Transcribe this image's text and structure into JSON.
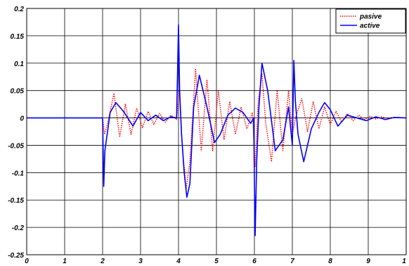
{
  "chart_data": {
    "type": "line",
    "title": "",
    "xlabel": "",
    "ylabel": "",
    "xlim": [
      0,
      10
    ],
    "ylim": [
      -0.25,
      0.2
    ],
    "grid": true,
    "legend_position": "top-right",
    "x_ticks": [
      "0",
      "1",
      "2",
      "3",
      "4",
      "5",
      "6",
      "7",
      "8",
      "9",
      "1"
    ],
    "y_ticks": [
      "0.2",
      "0.15",
      "0.1",
      "0.05",
      "0",
      "-0.05",
      "-0.1",
      "-0.15",
      "-0.2",
      "-0.25"
    ],
    "series": [
      {
        "name": "pasive",
        "color": "#ff0000",
        "style": "dotted",
        "x": [
          0,
          2.0,
          2.05,
          2.15,
          2.3,
          2.45,
          2.6,
          2.75,
          2.9,
          3.05,
          3.2,
          3.35,
          3.5,
          3.65,
          3.8,
          3.95,
          4.02,
          4.1,
          4.2,
          4.3,
          4.45,
          4.6,
          4.75,
          4.9,
          5.05,
          5.2,
          5.35,
          5.5,
          5.65,
          5.8,
          5.95,
          6.02,
          6.1,
          6.2,
          6.3,
          6.45,
          6.6,
          6.75,
          6.9,
          7.0,
          7.1,
          7.25,
          7.4,
          7.55,
          7.7,
          7.85,
          8.0,
          8.15,
          8.3,
          8.45,
          8.6,
          8.75,
          8.9,
          9.05,
          9.2,
          9.35,
          9.5,
          9.65,
          9.8,
          10
        ],
        "y": [
          0,
          0,
          -0.03,
          -0.005,
          0.045,
          -0.035,
          0.025,
          -0.03,
          0.018,
          -0.018,
          0.012,
          -0.012,
          0.008,
          -0.008,
          0.005,
          -0.003,
          0.05,
          -0.05,
          -0.13,
          -0.08,
          0.09,
          -0.06,
          0.07,
          -0.06,
          0.05,
          -0.04,
          0.03,
          -0.03,
          0.02,
          -0.02,
          0.01,
          -0.09,
          0.03,
          0.08,
          -0.01,
          -0.08,
          0.05,
          -0.06,
          0.05,
          -0.03,
          0.005,
          0.035,
          -0.025,
          0.03,
          -0.02,
          0.02,
          -0.012,
          0.012,
          -0.008,
          0.008,
          -0.005,
          0.005,
          -0.003,
          0.003,
          -0.002,
          0.002,
          -0.001,
          0.001,
          0,
          0
        ]
      },
      {
        "name": "active",
        "color": "#0000ff",
        "style": "solid",
        "x": [
          0,
          2.0,
          2.03,
          2.06,
          2.1,
          2.2,
          2.35,
          2.55,
          2.8,
          3.0,
          3.2,
          3.4,
          3.6,
          3.8,
          3.95,
          4.0,
          4.03,
          4.08,
          4.15,
          4.22,
          4.3,
          4.4,
          4.55,
          4.75,
          4.95,
          5.1,
          5.3,
          5.5,
          5.7,
          5.9,
          5.98,
          6.02,
          6.06,
          6.12,
          6.2,
          6.35,
          6.55,
          6.75,
          6.9,
          7.0,
          7.04,
          7.08,
          7.15,
          7.3,
          7.5,
          7.7,
          7.85,
          8.0,
          8.2,
          8.45,
          8.7,
          8.95,
          9.2,
          9.45,
          9.7,
          10
        ],
        "y": [
          0,
          0,
          -0.125,
          -0.06,
          -0.04,
          0.01,
          0.028,
          0.012,
          -0.015,
          0.01,
          -0.005,
          0.005,
          -0.005,
          0.002,
          0,
          0.17,
          0.05,
          -0.03,
          -0.1,
          -0.145,
          -0.12,
          0.02,
          0.078,
          0.02,
          -0.045,
          -0.03,
          0.005,
          0.018,
          0.01,
          -0.01,
          0,
          -0.215,
          -0.08,
          0.02,
          0.1,
          0.05,
          -0.06,
          -0.04,
          0.02,
          -0.05,
          0.105,
          0.03,
          -0.03,
          -0.08,
          -0.02,
          0.01,
          0.028,
          0.015,
          -0.015,
          0.005,
          0,
          -0.005,
          0.002,
          -0.003,
          0.001,
          0
        ]
      }
    ]
  }
}
